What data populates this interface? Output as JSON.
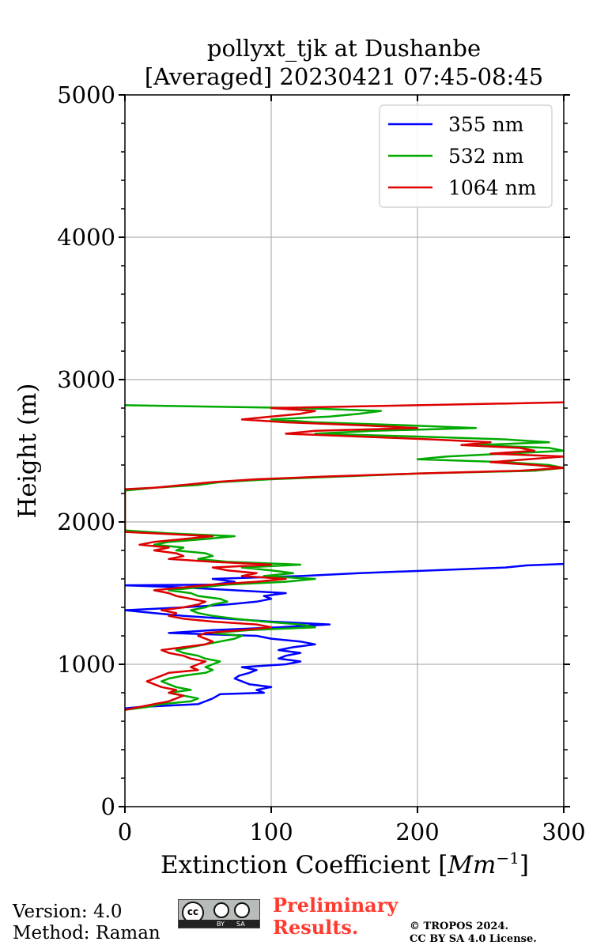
{
  "chart_data": {
    "type": "line",
    "title_lines": [
      "pollyxt_tjk at Dushanbe",
      "[Averaged] 20230421 07:45-08:45"
    ],
    "xlabel": "Extinction Coefficient [",
    "xlabel_unit": "Mm",
    "xlabel_exp": "−1",
    "xlabel_close": "]",
    "ylabel": "Height (m)",
    "xlim": [
      0,
      300
    ],
    "ylim": [
      0,
      5000
    ],
    "x_ticks": [
      0,
      100,
      200,
      300
    ],
    "x_tick_labels": [
      "0",
      "100",
      "200",
      "300"
    ],
    "y_ticks": [
      0,
      1000,
      2000,
      3000,
      4000,
      5000
    ],
    "y_tick_labels": [
      "0",
      "1000",
      "2000",
      "3000",
      "4000",
      "5000"
    ],
    "y_minor_step": 200,
    "grid": true,
    "legend_position": "top-right",
    "series": [
      {
        "name": "355 nm",
        "color": "#0000ff",
        "points": [
          [
            0,
            690
          ],
          [
            10,
            700
          ],
          [
            50,
            720
          ],
          [
            60,
            760
          ],
          [
            65,
            790
          ],
          [
            95,
            800
          ],
          [
            90,
            820
          ],
          [
            100,
            840
          ],
          [
            85,
            860
          ],
          [
            80,
            880
          ],
          [
            75,
            900
          ],
          [
            78,
            920
          ],
          [
            85,
            940
          ],
          [
            90,
            960
          ],
          [
            80,
            980
          ],
          [
            110,
            1000
          ],
          [
            120,
            1020
          ],
          [
            105,
            1040
          ],
          [
            110,
            1060
          ],
          [
            120,
            1080
          ],
          [
            105,
            1100
          ],
          [
            115,
            1120
          ],
          [
            130,
            1140
          ],
          [
            120,
            1160
          ],
          [
            100,
            1180
          ],
          [
            90,
            1200
          ],
          [
            30,
            1220
          ],
          [
            60,
            1240
          ],
          [
            105,
            1260
          ],
          [
            140,
            1280
          ],
          [
            100,
            1300
          ],
          [
            70,
            1320
          ],
          [
            40,
            1340
          ],
          [
            20,
            1360
          ],
          [
            0,
            1380
          ],
          [
            40,
            1400
          ],
          [
            70,
            1420
          ],
          [
            90,
            1440
          ],
          [
            100,
            1460
          ],
          [
            95,
            1480
          ],
          [
            110,
            1500
          ],
          [
            75,
            1520
          ],
          [
            40,
            1540
          ],
          [
            0,
            1555
          ],
          [
            60,
            1560
          ],
          [
            75,
            1580
          ],
          [
            60,
            1600
          ],
          [
            120,
            1620
          ],
          [
            160,
            1640
          ],
          [
            210,
            1660
          ],
          [
            260,
            1680
          ],
          [
            275,
            1695
          ],
          [
            300,
            1705
          ]
        ]
      },
      {
        "name": "532 nm",
        "color": "#00aa00",
        "points": [
          [
            0,
            680
          ],
          [
            15,
            700
          ],
          [
            25,
            720
          ],
          [
            45,
            740
          ],
          [
            50,
            760
          ],
          [
            40,
            780
          ],
          [
            30,
            800
          ],
          [
            45,
            820
          ],
          [
            35,
            840
          ],
          [
            30,
            860
          ],
          [
            25,
            880
          ],
          [
            30,
            900
          ],
          [
            40,
            920
          ],
          [
            55,
            940
          ],
          [
            60,
            960
          ],
          [
            55,
            980
          ],
          [
            60,
            1000
          ],
          [
            65,
            1020
          ],
          [
            55,
            1040
          ],
          [
            50,
            1060
          ],
          [
            40,
            1080
          ],
          [
            35,
            1100
          ],
          [
            45,
            1120
          ],
          [
            55,
            1140
          ],
          [
            65,
            1160
          ],
          [
            75,
            1180
          ],
          [
            80,
            1200
          ],
          [
            60,
            1220
          ],
          [
            85,
            1240
          ],
          [
            130,
            1260
          ],
          [
            120,
            1280
          ],
          [
            95,
            1300
          ],
          [
            75,
            1320
          ],
          [
            60,
            1340
          ],
          [
            50,
            1360
          ],
          [
            45,
            1380
          ],
          [
            55,
            1400
          ],
          [
            60,
            1420
          ],
          [
            70,
            1440
          ],
          [
            65,
            1460
          ],
          [
            50,
            1480
          ],
          [
            45,
            1500
          ],
          [
            30,
            1520
          ],
          [
            50,
            1540
          ],
          [
            70,
            1560
          ],
          [
            110,
            1580
          ],
          [
            130,
            1600
          ],
          [
            95,
            1620
          ],
          [
            115,
            1640
          ],
          [
            100,
            1660
          ],
          [
            80,
            1680
          ],
          [
            120,
            1700
          ],
          [
            70,
            1720
          ],
          [
            50,
            1740
          ],
          [
            60,
            1760
          ],
          [
            55,
            1780
          ],
          [
            35,
            1800
          ],
          [
            40,
            1820
          ],
          [
            20,
            1840
          ],
          [
            30,
            1860
          ],
          [
            55,
            1880
          ],
          [
            75,
            1900
          ],
          [
            30,
            1920
          ],
          [
            0,
            1940
          ],
          [
            0,
            2220
          ],
          [
            20,
            2240
          ],
          [
            50,
            2260
          ],
          [
            65,
            2280
          ],
          [
            100,
            2300
          ],
          [
            150,
            2320
          ],
          [
            200,
            2340
          ],
          [
            280,
            2360
          ],
          [
            300,
            2380
          ],
          [
            290,
            2400
          ],
          [
            260,
            2420
          ],
          [
            200,
            2440
          ],
          [
            220,
            2460
          ],
          [
            260,
            2480
          ],
          [
            300,
            2500
          ],
          [
            290,
            2520
          ],
          [
            240,
            2540
          ],
          [
            290,
            2560
          ],
          [
            260,
            2580
          ],
          [
            200,
            2600
          ],
          [
            130,
            2620
          ],
          [
            170,
            2640
          ],
          [
            240,
            2660
          ],
          [
            190,
            2680
          ],
          [
            130,
            2700
          ],
          [
            100,
            2720
          ],
          [
            140,
            2740
          ],
          [
            160,
            2760
          ],
          [
            175,
            2780
          ],
          [
            120,
            2800
          ],
          [
            0,
            2820
          ]
        ]
      },
      {
        "name": "1064 nm",
        "color": "#dd0000",
        "points": [
          [
            0,
            680
          ],
          [
            10,
            700
          ],
          [
            20,
            720
          ],
          [
            30,
            740
          ],
          [
            35,
            760
          ],
          [
            40,
            780
          ],
          [
            30,
            800
          ],
          [
            35,
            820
          ],
          [
            25,
            840
          ],
          [
            20,
            860
          ],
          [
            15,
            880
          ],
          [
            20,
            900
          ],
          [
            25,
            920
          ],
          [
            30,
            940
          ],
          [
            50,
            960
          ],
          [
            45,
            980
          ],
          [
            50,
            1000
          ],
          [
            55,
            1020
          ],
          [
            45,
            1040
          ],
          [
            40,
            1060
          ],
          [
            30,
            1080
          ],
          [
            25,
            1100
          ],
          [
            40,
            1120
          ],
          [
            55,
            1140
          ],
          [
            60,
            1160
          ],
          [
            55,
            1180
          ],
          [
            50,
            1200
          ],
          [
            55,
            1220
          ],
          [
            80,
            1240
          ],
          [
            100,
            1260
          ],
          [
            90,
            1280
          ],
          [
            60,
            1300
          ],
          [
            40,
            1320
          ],
          [
            30,
            1340
          ],
          [
            35,
            1360
          ],
          [
            25,
            1380
          ],
          [
            40,
            1400
          ],
          [
            50,
            1420
          ],
          [
            55,
            1440
          ],
          [
            45,
            1460
          ],
          [
            35,
            1480
          ],
          [
            30,
            1500
          ],
          [
            20,
            1520
          ],
          [
            40,
            1540
          ],
          [
            60,
            1560
          ],
          [
            90,
            1580
          ],
          [
            110,
            1600
          ],
          [
            80,
            1620
          ],
          [
            90,
            1640
          ],
          [
            70,
            1660
          ],
          [
            60,
            1680
          ],
          [
            100,
            1700
          ],
          [
            60,
            1720
          ],
          [
            30,
            1740
          ],
          [
            40,
            1760
          ],
          [
            35,
            1780
          ],
          [
            20,
            1800
          ],
          [
            30,
            1820
          ],
          [
            10,
            1840
          ],
          [
            20,
            1860
          ],
          [
            40,
            1880
          ],
          [
            60,
            1900
          ],
          [
            20,
            1920
          ],
          [
            0,
            1930
          ],
          [
            0,
            2230
          ],
          [
            20,
            2240
          ],
          [
            40,
            2260
          ],
          [
            60,
            2280
          ],
          [
            90,
            2300
          ],
          [
            140,
            2320
          ],
          [
            200,
            2340
          ],
          [
            270,
            2360
          ],
          [
            300,
            2380
          ],
          [
            280,
            2400
          ],
          [
            250,
            2420
          ],
          [
            300,
            2460
          ],
          [
            250,
            2480
          ],
          [
            280,
            2500
          ],
          [
            270,
            2520
          ],
          [
            230,
            2540
          ],
          [
            250,
            2560
          ],
          [
            210,
            2580
          ],
          [
            160,
            2600
          ],
          [
            110,
            2620
          ],
          [
            130,
            2640
          ],
          [
            200,
            2660
          ],
          [
            160,
            2680
          ],
          [
            110,
            2700
          ],
          [
            80,
            2720
          ],
          [
            100,
            2740
          ],
          [
            120,
            2760
          ],
          [
            130,
            2780
          ],
          [
            100,
            2800
          ],
          [
            200,
            2820
          ],
          [
            300,
            2840
          ]
        ]
      }
    ]
  },
  "footer": {
    "version": "Version: 4.0",
    "method": "Method: Raman",
    "prelim_line1": "Preliminary",
    "prelim_line2": "Results.",
    "copyright_line1": "© TROPOS 2024.",
    "copyright_line2": "CC BY SA 4.0 License.",
    "badge_cc": "cc",
    "badge_by": "BY",
    "badge_sa": "SA"
  }
}
